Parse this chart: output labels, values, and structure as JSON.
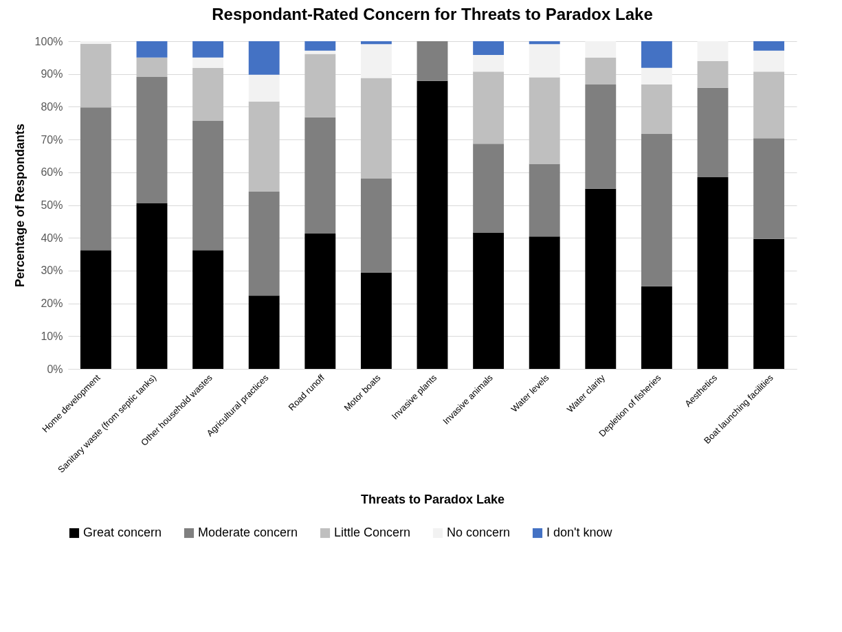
{
  "chart_data": {
    "type": "bar",
    "stacked": true,
    "title": "Respondant-Rated Concern for Threats to Paradox Lake",
    "xlabel": "Threats to Paradox Lake",
    "ylabel": "Percentage of Respondants",
    "categories": [
      "Home development",
      "Sanitary waste (from septic tanks)",
      "Other household wastes",
      "Agricultural practices",
      "Road runoff",
      "Motor boats",
      "Invasive plants",
      "Invasive animals",
      "Water levels",
      "Water clarity",
      "Depletion of fisheries",
      "Aesthetics",
      "Boat launching facilities"
    ],
    "series": [
      {
        "name": "Great concern",
        "color": "#000000",
        "values": [
          36.2,
          50.5,
          36.2,
          22.4,
          41.3,
          29.4,
          87.9,
          41.6,
          40.4,
          55.0,
          25.2,
          58.5,
          39.7
        ]
      },
      {
        "name": "Moderate concern",
        "color": "#7f7f7f",
        "values": [
          43.6,
          38.6,
          39.6,
          31.7,
          35.5,
          28.8,
          12.1,
          27.1,
          22.2,
          31.8,
          46.5,
          27.3,
          30.7
        ]
      },
      {
        "name": "Little Concern",
        "color": "#bfbfbf",
        "values": [
          19.4,
          5.9,
          16.1,
          27.5,
          19.3,
          30.6,
          0,
          22.0,
          26.4,
          8.2,
          15.1,
          8.1,
          20.3
        ]
      },
      {
        "name": "No concern",
        "color": "#f2f2f2",
        "values": [
          0.8,
          0,
          3.1,
          8.2,
          1.0,
          10.3,
          0,
          5.1,
          10.1,
          5.0,
          5.1,
          6.1,
          6.4
        ]
      },
      {
        "name": "I don't know",
        "color": "#4472c4",
        "values": [
          0,
          5.0,
          5.0,
          10.2,
          2.9,
          0.9,
          0,
          4.2,
          0.9,
          0,
          8.1,
          0,
          2.9
        ]
      }
    ],
    "ylim": [
      0,
      100
    ],
    "yticks": [
      {
        "value": 0,
        "label": "0%"
      },
      {
        "value": 10,
        "label": "10%"
      },
      {
        "value": 20,
        "label": "20%"
      },
      {
        "value": 30,
        "label": "30%"
      },
      {
        "value": 40,
        "label": "40%"
      },
      {
        "value": 50,
        "label": "50%"
      },
      {
        "value": 60,
        "label": "60%"
      },
      {
        "value": 70,
        "label": "70%"
      },
      {
        "value": 80,
        "label": "80%"
      },
      {
        "value": 90,
        "label": "90%"
      },
      {
        "value": 100,
        "label": "100%"
      }
    ],
    "grid": "y",
    "legend": "bottom"
  }
}
